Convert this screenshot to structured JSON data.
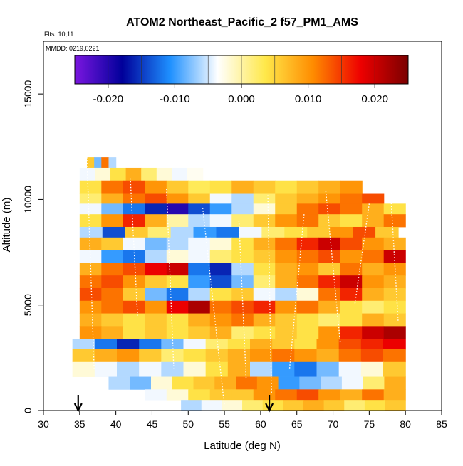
{
  "chart_data": {
    "type": "heatmap",
    "title": "ATOM2 Northeast_Pacific_2 f57_PM1_AMS",
    "notes": {
      "flights": "Flts: 10,11",
      "dates": "MMDD: 0219,0221"
    },
    "xlabel": "Latitude (deg N)",
    "ylabel": "Altitude (m)",
    "xlim": [
      30,
      85
    ],
    "ylim": [
      0,
      17500
    ],
    "xticks": [
      30,
      35,
      40,
      45,
      50,
      55,
      60,
      65,
      70,
      75,
      80,
      85
    ],
    "xtick_labels": [
      "30",
      "35",
      "40",
      "45",
      "50",
      "55",
      "60",
      "65",
      "70",
      "75",
      "80",
      "85"
    ],
    "yticks": [
      0,
      5000,
      10000,
      15000
    ],
    "ytick_labels": [
      "0",
      "5000",
      "10000",
      "15000"
    ],
    "colorbar": {
      "range": [
        -0.025,
        0.025
      ],
      "ticks": [
        -0.02,
        -0.01,
        0.0,
        0.01,
        0.02
      ],
      "tick_labels": [
        "-0.020",
        "-0.010",
        "0.000",
        "0.010",
        "0.020"
      ],
      "colors": [
        "#7b16e0",
        "#00009a",
        "#1e90ff",
        "#ffffff",
        "#ffe84a",
        "#ff8c00",
        "#ee0000",
        "#7a0000"
      ]
    },
    "arrows_lat": [
      34.8,
      61.2
    ],
    "bands": [
      {
        "alt_bottom": 11400,
        "alt_top": 12000,
        "lat_start": 36,
        "lat_end": 40,
        "values": [
          0.006,
          -0.008,
          0.012,
          -0.006
        ]
      },
      {
        "alt_bottom": 10900,
        "alt_top": 11500,
        "lat_start": 35,
        "lat_end": 52,
        "values": [
          -0.004,
          -0.002,
          0.004,
          0.008,
          0.002,
          -0.002,
          -0.004,
          -0.003
        ]
      },
      {
        "alt_bottom": 10300,
        "alt_top": 10900,
        "lat_start": 35,
        "lat_end": 74,
        "values": [
          0.004,
          0.012,
          0.014,
          0.01,
          0.006,
          0.003,
          0.004,
          0.008,
          0.006,
          0.004,
          0.006,
          0.008,
          0.01
        ]
      },
      {
        "alt_bottom": 9800,
        "alt_top": 10300,
        "lat_start": 35,
        "lat_end": 77,
        "values": [
          0.002,
          0.008,
          0.012,
          0.014,
          0.01,
          0.006,
          -0.004,
          -0.006,
          0.002,
          0.006,
          0.008,
          0.01,
          0.012,
          0.014
        ]
      },
      {
        "alt_bottom": 9300,
        "alt_top": 9800,
        "lat_start": 35,
        "lat_end": 80,
        "values": [
          -0.004,
          -0.008,
          -0.012,
          -0.016,
          -0.02,
          -0.014,
          -0.01,
          -0.006,
          -0.002,
          0.006,
          0.012,
          0.014,
          0.012,
          0.008,
          0.004
        ]
      },
      {
        "alt_bottom": 8700,
        "alt_top": 9300,
        "lat_start": 35,
        "lat_end": 80,
        "values": [
          0.004,
          0.01,
          0.016,
          0.008,
          0.0,
          -0.006,
          -0.004,
          0.002,
          0.006,
          0.01,
          0.012,
          0.006,
          0.004,
          0.008,
          0.012
        ]
      },
      {
        "alt_bottom": 8200,
        "alt_top": 8700,
        "lat_start": 35,
        "lat_end": 79,
        "values": [
          -0.006,
          -0.014,
          0.006,
          0.002,
          -0.006,
          -0.01,
          -0.012,
          -0.004,
          0.002,
          0.004,
          0.006,
          0.01,
          0.014,
          0.006
        ]
      },
      {
        "alt_bottom": 7600,
        "alt_top": 8200,
        "lat_start": 35,
        "lat_end": 80,
        "values": [
          0.008,
          0.006,
          -0.004,
          -0.008,
          -0.006,
          -0.004,
          -0.002,
          0.004,
          0.008,
          0.012,
          0.016,
          0.02,
          0.014,
          0.01,
          0.008
        ]
      },
      {
        "alt_bottom": 7000,
        "alt_top": 7600,
        "lat_start": 35,
        "lat_end": 80,
        "values": [
          -0.004,
          -0.01,
          -0.012,
          -0.006,
          -0.002,
          -0.004,
          0.002,
          0.004,
          0.006,
          0.01,
          0.012,
          0.014,
          0.01,
          0.012,
          0.02
        ]
      },
      {
        "alt_bottom": 6400,
        "alt_top": 7000,
        "lat_start": 35,
        "lat_end": 80,
        "values": [
          0.008,
          0.012,
          0.014,
          0.018,
          0.02,
          -0.012,
          -0.016,
          -0.006,
          0.004,
          0.008,
          0.01,
          0.006,
          0.012,
          0.008,
          0.01
        ]
      },
      {
        "alt_bottom": 5800,
        "alt_top": 6400,
        "lat_start": 35,
        "lat_end": 80,
        "values": [
          0.012,
          0.014,
          0.01,
          0.006,
          0.004,
          -0.01,
          -0.014,
          -0.008,
          0.002,
          0.008,
          0.012,
          0.016,
          0.02,
          0.01,
          0.008
        ]
      },
      {
        "alt_bottom": 5200,
        "alt_top": 5800,
        "lat_start": 35,
        "lat_end": 80,
        "values": [
          0.014,
          0.012,
          0.006,
          -0.008,
          -0.012,
          -0.006,
          0.004,
          0.006,
          -0.004,
          -0.006,
          -0.002,
          0.012,
          0.016,
          0.008,
          0.006
        ]
      },
      {
        "alt_bottom": 4600,
        "alt_top": 5200,
        "lat_start": 35,
        "lat_end": 80,
        "values": [
          0.01,
          0.012,
          0.014,
          0.01,
          0.018,
          0.022,
          0.012,
          0.014,
          0.016,
          0.01,
          0.012,
          0.008,
          0.004,
          0.002,
          0.004
        ]
      },
      {
        "alt_bottom": 4000,
        "alt_top": 4600,
        "lat_start": 35,
        "lat_end": 80,
        "values": [
          0.008,
          0.006,
          0.004,
          0.006,
          0.004,
          0.008,
          0.01,
          0.012,
          0.008,
          0.006,
          0.004,
          0.002,
          0.004,
          0.008,
          0.006
        ]
      },
      {
        "alt_bottom": 3400,
        "alt_top": 4000,
        "lat_start": 35,
        "lat_end": 80,
        "values": [
          0.01,
          0.008,
          0.004,
          0.006,
          0.004,
          0.006,
          0.008,
          0.002,
          0.004,
          0.006,
          0.004,
          0.01,
          0.016,
          0.02,
          0.022
        ]
      },
      {
        "alt_bottom": 2900,
        "alt_top": 3400,
        "lat_start": 34,
        "lat_end": 80,
        "values": [
          -0.006,
          -0.012,
          -0.016,
          -0.012,
          -0.008,
          -0.004,
          0.002,
          0.004,
          0.008,
          0.006,
          0.004,
          0.01,
          0.014,
          0.016,
          0.018
        ]
      },
      {
        "alt_bottom": 2300,
        "alt_top": 2900,
        "lat_start": 34,
        "lat_end": 80,
        "values": [
          0.006,
          0.008,
          0.01,
          0.006,
          0.002,
          0.004,
          0.006,
          0.008,
          0.01,
          0.012,
          0.01,
          0.008,
          0.012,
          0.014,
          0.012
        ]
      },
      {
        "alt_bottom": 1600,
        "alt_top": 2300,
        "lat_start": 34,
        "lat_end": 80,
        "values": [
          -0.002,
          -0.004,
          -0.006,
          -0.004,
          -0.006,
          -0.002,
          0.004,
          0.008,
          -0.006,
          -0.01,
          -0.012,
          -0.008,
          -0.004,
          -0.002,
          0.006
        ]
      },
      {
        "alt_bottom": 1000,
        "alt_top": 1600,
        "lat_start": 39,
        "lat_end": 80,
        "values": [
          -0.006,
          -0.008,
          -0.002,
          0.004,
          0.006,
          0.008,
          0.012,
          0.01,
          -0.01,
          -0.008,
          -0.006,
          -0.004,
          0.002,
          0.008
        ]
      },
      {
        "alt_bottom": 500,
        "alt_top": 1000,
        "lat_start": 44,
        "lat_end": 80,
        "values": [
          -0.004,
          -0.002,
          0.004,
          0.006,
          0.006,
          0.01,
          0.012,
          0.014,
          0.01,
          0.008,
          0.012,
          0.008
        ]
      },
      {
        "alt_bottom": 0,
        "alt_top": 500,
        "lat_start": 49,
        "lat_end": 80,
        "values": [
          -0.006,
          -0.004,
          -0.002,
          0.002,
          0.004,
          0.006,
          0.008,
          0.006,
          0.002,
          0.004,
          0.006
        ]
      }
    ]
  }
}
